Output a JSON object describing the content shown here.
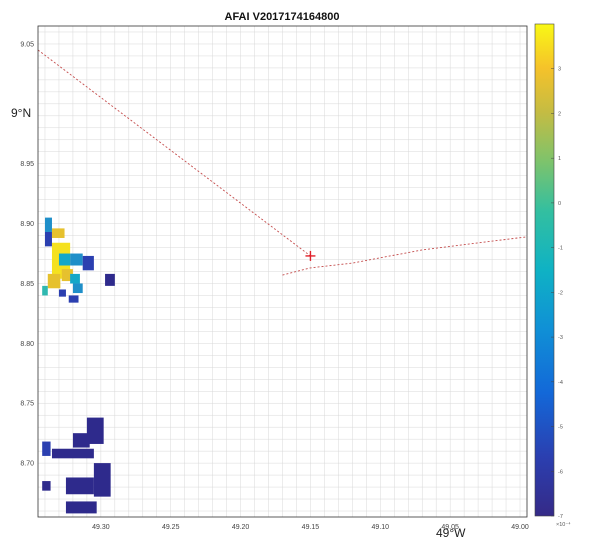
{
  "title": "AFAI V2017174164800",
  "lat_axis": {
    "ticks": [
      "9.05",
      "8.95",
      "8.90",
      "8.85",
      "8.80",
      "8.75",
      "8.70"
    ],
    "marker_label": "9°N"
  },
  "lon_axis": {
    "ticks": [
      "49.30",
      "49.25",
      "49.20",
      "49.15",
      "49.10",
      "49.05",
      "49.00"
    ],
    "marker_label": "49°W"
  },
  "colorbar": {
    "ticks": [
      "3",
      "2",
      "1",
      "0",
      "-1",
      "-2",
      "-3",
      "-4",
      "-5",
      "-6",
      "-7"
    ],
    "multiplier": "×10⁻⁴",
    "min": -7,
    "max": 4
  },
  "colors": {
    "low": "#2e2a8c",
    "mid": "#1f8fc9",
    "high": "#f5e11f",
    "track": "#c44c4c",
    "marker": "#e0202a",
    "grid": "#d8d8d8"
  },
  "map": {
    "lon_range": [
      49.345,
      48.995
    ],
    "lat_range": [
      8.655,
      9.065
    ],
    "marker": {
      "lon": 49.15,
      "lat": 8.873
    },
    "track_nw": [
      [
        49.345,
        9.045
      ],
      [
        49.15,
        8.873
      ]
    ],
    "track_e": [
      [
        49.17,
        8.857
      ],
      [
        49.15,
        8.863
      ],
      [
        49.12,
        8.867
      ],
      [
        49.07,
        8.878
      ],
      [
        48.995,
        8.889
      ]
    ],
    "pixels": [
      {
        "lon": 49.34,
        "lat": 8.905,
        "w": 0.005,
        "h": 0.012,
        "v": -3
      },
      {
        "lon": 49.34,
        "lat": 8.893,
        "w": 0.005,
        "h": 0.012,
        "v": -5
      },
      {
        "lon": 49.335,
        "lat": 8.896,
        "w": 0.009,
        "h": 0.008,
        "v": 2
      },
      {
        "lon": 49.335,
        "lat": 8.884,
        "w": 0.013,
        "h": 0.016,
        "v": 3
      },
      {
        "lon": 49.335,
        "lat": 8.87,
        "w": 0.013,
        "h": 0.016,
        "v": 3
      },
      {
        "lon": 49.338,
        "lat": 8.858,
        "w": 0.009,
        "h": 0.012,
        "v": 2
      },
      {
        "lon": 49.33,
        "lat": 8.875,
        "w": 0.008,
        "h": 0.01,
        "v": -2
      },
      {
        "lon": 49.322,
        "lat": 8.875,
        "w": 0.009,
        "h": 0.01,
        "v": -3
      },
      {
        "lon": 49.313,
        "lat": 8.873,
        "w": 0.008,
        "h": 0.012,
        "v": -4
      },
      {
        "lon": 49.328,
        "lat": 8.862,
        "w": 0.008,
        "h": 0.01,
        "v": 2
      },
      {
        "lon": 49.322,
        "lat": 8.858,
        "w": 0.007,
        "h": 0.008,
        "v": -2
      },
      {
        "lon": 49.32,
        "lat": 8.85,
        "w": 0.007,
        "h": 0.008,
        "v": -3
      },
      {
        "lon": 49.342,
        "lat": 8.848,
        "w": 0.004,
        "h": 0.008,
        "v": -1
      },
      {
        "lon": 49.33,
        "lat": 8.845,
        "w": 0.005,
        "h": 0.006,
        "v": -4
      },
      {
        "lon": 49.323,
        "lat": 8.84,
        "w": 0.007,
        "h": 0.006,
        "v": -5
      },
      {
        "lon": 49.297,
        "lat": 8.858,
        "w": 0.007,
        "h": 0.01,
        "v": -7
      },
      {
        "lon": 49.31,
        "lat": 8.738,
        "w": 0.012,
        "h": 0.022,
        "v": -7
      },
      {
        "lon": 49.32,
        "lat": 8.725,
        "w": 0.012,
        "h": 0.012,
        "v": -7
      },
      {
        "lon": 49.342,
        "lat": 8.718,
        "w": 0.006,
        "h": 0.012,
        "v": -5
      },
      {
        "lon": 49.335,
        "lat": 8.712,
        "w": 0.03,
        "h": 0.008,
        "v": -7
      },
      {
        "lon": 49.305,
        "lat": 8.7,
        "w": 0.012,
        "h": 0.028,
        "v": -7
      },
      {
        "lon": 49.325,
        "lat": 8.688,
        "w": 0.02,
        "h": 0.014,
        "v": -7
      },
      {
        "lon": 49.342,
        "lat": 8.685,
        "w": 0.006,
        "h": 0.008,
        "v": -7
      },
      {
        "lon": 49.325,
        "lat": 8.668,
        "w": 0.022,
        "h": 0.01,
        "v": -7
      }
    ]
  }
}
